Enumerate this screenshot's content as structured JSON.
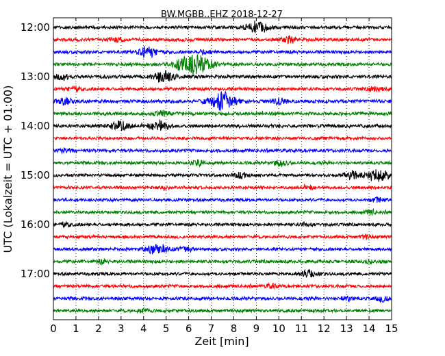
{
  "chart_data": {
    "type": "line",
    "title": "BW.MGBB..EHZ 2018-12-27",
    "xlabel": "Zeit  [min]",
    "ylabel": "UTC (Lokalzeit = UTC + 01:00)",
    "xlim": [
      0,
      15
    ],
    "x_ticks": [
      "0",
      "1",
      "2",
      "3",
      "4",
      "5",
      "6",
      "7",
      "8",
      "9",
      "10",
      "11",
      "12",
      "13",
      "14",
      "15"
    ],
    "y_ticks": [
      "12:00",
      "13:00",
      "14:00",
      "15:00",
      "16:00",
      "17:00"
    ],
    "grid": true,
    "row_interval_minutes": 15,
    "row_start": "12:00",
    "colors_cycle": [
      "#000000",
      "#ff0000",
      "#0000ff",
      "#008000"
    ],
    "series": [
      {
        "start": "12:00",
        "color": "#000000",
        "level": 0.35,
        "events": [
          [
            9.0,
            1.6
          ]
        ]
      },
      {
        "start": "12:15",
        "color": "#ff0000",
        "level": 0.45,
        "events": [
          [
            2.8,
            0.6
          ],
          [
            10.5,
            0.7
          ]
        ]
      },
      {
        "start": "12:30",
        "color": "#0000ff",
        "level": 0.45,
        "events": [
          [
            4.2,
            1.3
          ],
          [
            6.7,
            0.5
          ]
        ]
      },
      {
        "start": "12:45",
        "color": "#008000",
        "level": 0.4,
        "events": [
          [
            6.2,
            2.8
          ]
        ]
      },
      {
        "start": "13:00",
        "color": "#000000",
        "level": 0.5,
        "events": [
          [
            0.4,
            0.7
          ],
          [
            4.9,
            1.4
          ]
        ]
      },
      {
        "start": "13:15",
        "color": "#ff0000",
        "level": 0.5,
        "events": [
          [
            0.9,
            0.6
          ],
          [
            14.3,
            0.6
          ]
        ]
      },
      {
        "start": "13:30",
        "color": "#0000ff",
        "level": 0.55,
        "events": [
          [
            0.5,
            0.8
          ],
          [
            7.5,
            2.2
          ],
          [
            10.0,
            0.7
          ]
        ]
      },
      {
        "start": "13:45",
        "color": "#008000",
        "level": 0.55,
        "events": [
          [
            4.8,
            0.7
          ]
        ]
      },
      {
        "start": "14:00",
        "color": "#000000",
        "level": 0.5,
        "events": [
          [
            2.9,
            1.3
          ],
          [
            4.7,
            1.2
          ]
        ]
      },
      {
        "start": "14:15",
        "color": "#ff0000",
        "level": 0.4,
        "events": []
      },
      {
        "start": "14:30",
        "color": "#0000ff",
        "level": 0.4,
        "events": [
          [
            0.5,
            0.5
          ]
        ]
      },
      {
        "start": "14:45",
        "color": "#008000",
        "level": 0.4,
        "events": [
          [
            6.4,
            0.6
          ],
          [
            10.1,
            0.8
          ]
        ]
      },
      {
        "start": "15:00",
        "color": "#000000",
        "level": 0.4,
        "events": [
          [
            8.3,
            0.6
          ],
          [
            13.3,
            0.9
          ],
          [
            14.4,
            1.6
          ]
        ]
      },
      {
        "start": "15:15",
        "color": "#ff0000",
        "level": 0.35,
        "events": [
          [
            4.9,
            0.4
          ],
          [
            11.3,
            0.4
          ]
        ]
      },
      {
        "start": "15:30",
        "color": "#0000ff",
        "level": 0.35,
        "events": [
          [
            14.4,
            0.6
          ]
        ]
      },
      {
        "start": "15:45",
        "color": "#008000",
        "level": 0.35,
        "events": [
          [
            14.1,
            0.5
          ]
        ]
      },
      {
        "start": "16:00",
        "color": "#000000",
        "level": 0.35,
        "events": [
          [
            0.5,
            0.5
          ],
          [
            11.2,
            0.4
          ]
        ]
      },
      {
        "start": "16:15",
        "color": "#ff0000",
        "level": 0.3,
        "events": [
          [
            13.9,
            0.5
          ]
        ]
      },
      {
        "start": "16:30",
        "color": "#0000ff",
        "level": 0.35,
        "events": [
          [
            4.6,
            1.5
          ],
          [
            5.9,
            0.7
          ]
        ]
      },
      {
        "start": "16:45",
        "color": "#008000",
        "level": 0.45,
        "events": [
          [
            2.1,
            0.4
          ],
          [
            14.0,
            0.4
          ]
        ]
      },
      {
        "start": "17:00",
        "color": "#000000",
        "level": 0.35,
        "events": [
          [
            11.3,
            0.9
          ]
        ]
      },
      {
        "start": "17:15",
        "color": "#ff0000",
        "level": 0.45,
        "events": [
          [
            9.7,
            0.4
          ]
        ]
      },
      {
        "start": "17:30",
        "color": "#0000ff",
        "level": 0.4,
        "events": [
          [
            13.0,
            0.5
          ],
          [
            14.6,
            0.6
          ]
        ]
      },
      {
        "start": "17:45",
        "color": "#008000",
        "level": 0.4,
        "events": [
          [
            4.0,
            0.4
          ]
        ]
      }
    ]
  }
}
